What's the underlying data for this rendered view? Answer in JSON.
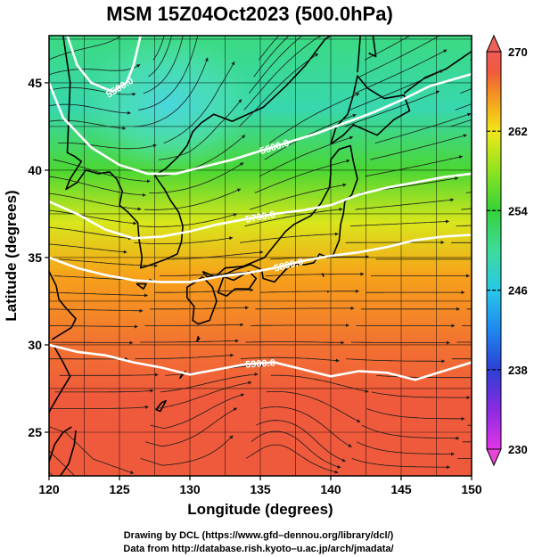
{
  "title": "MSM 15Z04Oct2023 (500.0hPa)",
  "chart_data": {
    "type": "contour-streamline-map",
    "xlabel": "Longitude (degrees)",
    "ylabel": "Latitude  (degrees)",
    "xlim": [
      120,
      150
    ],
    "ylim": [
      22.5,
      47.7
    ],
    "xticks": [
      120,
      125,
      130,
      135,
      140,
      145,
      150
    ],
    "yticks": [
      25,
      30,
      35,
      40,
      45
    ],
    "grid": true,
    "colorbar": {
      "min": 230,
      "max": 270,
      "ticks": [
        230,
        238,
        246,
        254,
        262,
        270
      ],
      "placement": "right"
    },
    "contours": [
      {
        "label": "5900.0",
        "points": [
          [
            120,
            30.0
          ],
          [
            122,
            29.6
          ],
          [
            124,
            29.4
          ],
          [
            126,
            29.0
          ],
          [
            128,
            28.7
          ],
          [
            130,
            28.3
          ],
          [
            132,
            28.6
          ],
          [
            134,
            28.9
          ],
          [
            136,
            29.0
          ],
          [
            138,
            28.6
          ],
          [
            140,
            28.2
          ],
          [
            142,
            28.5
          ],
          [
            144,
            28.4
          ],
          [
            146,
            28.0
          ],
          [
            148,
            28.5
          ],
          [
            150,
            29.0
          ]
        ]
      },
      {
        "label": "5800.0",
        "points": [
          [
            120,
            35.0
          ],
          [
            122,
            34.4
          ],
          [
            124,
            34.0
          ],
          [
            126,
            33.7
          ],
          [
            128,
            33.6
          ],
          [
            130,
            33.6
          ],
          [
            132,
            33.9
          ],
          [
            134,
            34.1
          ],
          [
            136,
            34.4
          ],
          [
            138,
            34.8
          ],
          [
            140,
            35.1
          ],
          [
            142,
            35.3
          ],
          [
            144,
            35.6
          ],
          [
            146,
            36.0
          ],
          [
            148,
            36.2
          ],
          [
            150,
            36.3
          ]
        ]
      },
      {
        "label": "5700.0",
        "points": [
          [
            120,
            38.2
          ],
          [
            122,
            37.5
          ],
          [
            124,
            36.6
          ],
          [
            126,
            36.1
          ],
          [
            128,
            36.2
          ],
          [
            130,
            36.5
          ],
          [
            132,
            36.9
          ],
          [
            134,
            37.2
          ],
          [
            136,
            37.5
          ],
          [
            138,
            37.7
          ],
          [
            140,
            38.0
          ],
          [
            142,
            38.6
          ],
          [
            144,
            39.0
          ],
          [
            146,
            39.3
          ],
          [
            148,
            39.6
          ],
          [
            150,
            39.8
          ]
        ]
      },
      {
        "label": "5600.0",
        "points": [
          [
            120,
            45.0
          ],
          [
            121,
            43.0
          ],
          [
            123,
            41.3
          ],
          [
            125,
            40.3
          ],
          [
            127,
            39.8
          ],
          [
            129,
            39.8
          ],
          [
            131,
            40.2
          ],
          [
            133,
            40.6
          ],
          [
            135,
            41.1
          ],
          [
            137,
            41.6
          ],
          [
            139,
            42.1
          ],
          [
            141,
            42.7
          ],
          [
            143,
            43.3
          ],
          [
            145,
            44.0
          ],
          [
            147,
            44.8
          ],
          [
            150,
            45.5
          ]
        ]
      },
      {
        "label": "5500.0",
        "points": [
          [
            121.3,
            47.7
          ],
          [
            122,
            46.0
          ],
          [
            123,
            45.0
          ],
          [
            124.5,
            44.5
          ],
          [
            125.5,
            45.0
          ],
          [
            126,
            46.0
          ],
          [
            126.5,
            47.7
          ]
        ]
      }
    ],
    "color_field": [
      {
        "lat": 47.7,
        "value": 251
      },
      {
        "lat": 43.5,
        "value": 249
      },
      {
        "lat": 40.0,
        "value": 255
      },
      {
        "lat": 37.0,
        "value": 261
      },
      {
        "lat": 34.0,
        "value": 265
      },
      {
        "lat": 30.0,
        "value": 267
      },
      {
        "lat": 27.0,
        "value": 268
      },
      {
        "lat": 22.5,
        "value": 268
      }
    ],
    "cold_core": {
      "lon": 128.5,
      "lat": 43.8,
      "value": 245
    }
  },
  "credit": {
    "line1": "Drawing by DCL (https://www.gfd–dennou.org/library/dcl/)",
    "line2": "Data from http://database.rish.kyoto–u.ac.jp/arch/jmadata/"
  },
  "colors": {
    "frame": "#000000",
    "contour": "#ffffff",
    "streamline": "#1a1a1a",
    "coast": "#000000"
  }
}
